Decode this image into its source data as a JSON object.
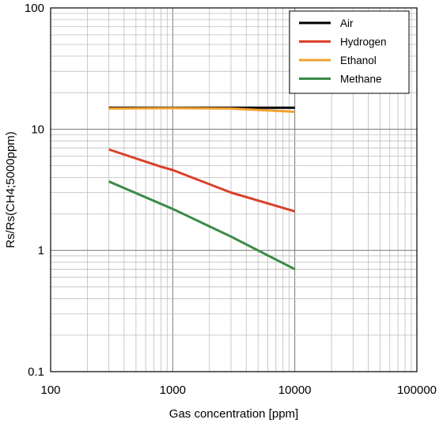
{
  "chart_data": {
    "type": "line",
    "title": "",
    "xlabel": "Gas concentration [ppm]",
    "ylabel": "Rs/Rs(CH4;5000ppm)",
    "x_scale": "log",
    "y_scale": "log",
    "xlim": [
      100,
      100000
    ],
    "ylim": [
      0.1,
      100
    ],
    "grid": true,
    "legend_position": "top-right",
    "x_ticks": [
      {
        "value": 100,
        "label": "100"
      },
      {
        "value": 1000,
        "label": "1000"
      },
      {
        "value": 10000,
        "label": "10000"
      },
      {
        "value": 100000,
        "label": "100000"
      }
    ],
    "y_ticks": [
      {
        "value": 0.1,
        "label": "0.1"
      },
      {
        "value": 1,
        "label": "1"
      },
      {
        "value": 10,
        "label": "10"
      },
      {
        "value": 100,
        "label": "100"
      }
    ],
    "series": [
      {
        "name": "Air",
        "color": "#000000",
        "points": [
          [
            300,
            15
          ],
          [
            1000,
            15
          ],
          [
            3000,
            15
          ],
          [
            10000,
            15
          ]
        ]
      },
      {
        "name": "Hydrogen",
        "color": "#d9412b",
        "points": [
          [
            300,
            6.8
          ],
          [
            800,
            4.9
          ],
          [
            1000,
            4.6
          ],
          [
            3000,
            3.0
          ],
          [
            10000,
            2.1
          ]
        ]
      },
      {
        "name": "Ethanol",
        "color": "#f0a030",
        "points": [
          [
            300,
            14.8
          ],
          [
            1000,
            14.9
          ],
          [
            3000,
            14.8
          ],
          [
            10000,
            13.9
          ]
        ]
      },
      {
        "name": "Methane",
        "color": "#3b8a45",
        "points": [
          [
            300,
            3.7
          ],
          [
            1000,
            2.2
          ],
          [
            3000,
            1.3
          ],
          [
            5000,
            1.0
          ],
          [
            10000,
            0.7
          ]
        ]
      }
    ]
  }
}
